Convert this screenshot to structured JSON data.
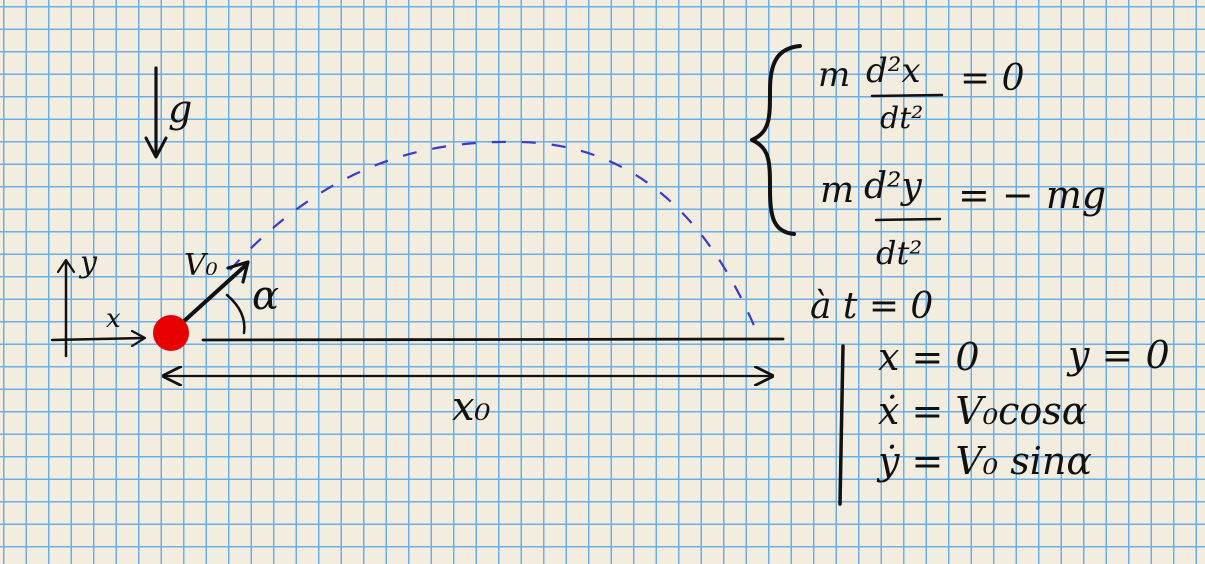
{
  "diagram": {
    "gravity_label": "g",
    "axis_y_label": "y",
    "axis_x_label": "x",
    "velocity_label": "V₀",
    "angle_label": "α",
    "range_label": "x₀",
    "colors": {
      "ink": "#111111",
      "ball": "#e60000",
      "trajectory": "#3a3ad0",
      "paper": "#f3ede0",
      "grid": "#6aaee8"
    }
  },
  "equations": {
    "eq1_m": "m",
    "eq1_num": "d²x",
    "eq1_den": "dt²",
    "eq1_rhs": "=  0",
    "eq2_m": "m",
    "eq2_num": "d²y",
    "eq2_den": "dt²",
    "eq2_rhs": "= − mg",
    "initial_header": "à t = 0",
    "ic_x": "x = 0",
    "ic_y": "y = 0",
    "ic_xdot": "ẋ = V₀cosα",
    "ic_ydot": "ẏ = V₀ sinα"
  }
}
